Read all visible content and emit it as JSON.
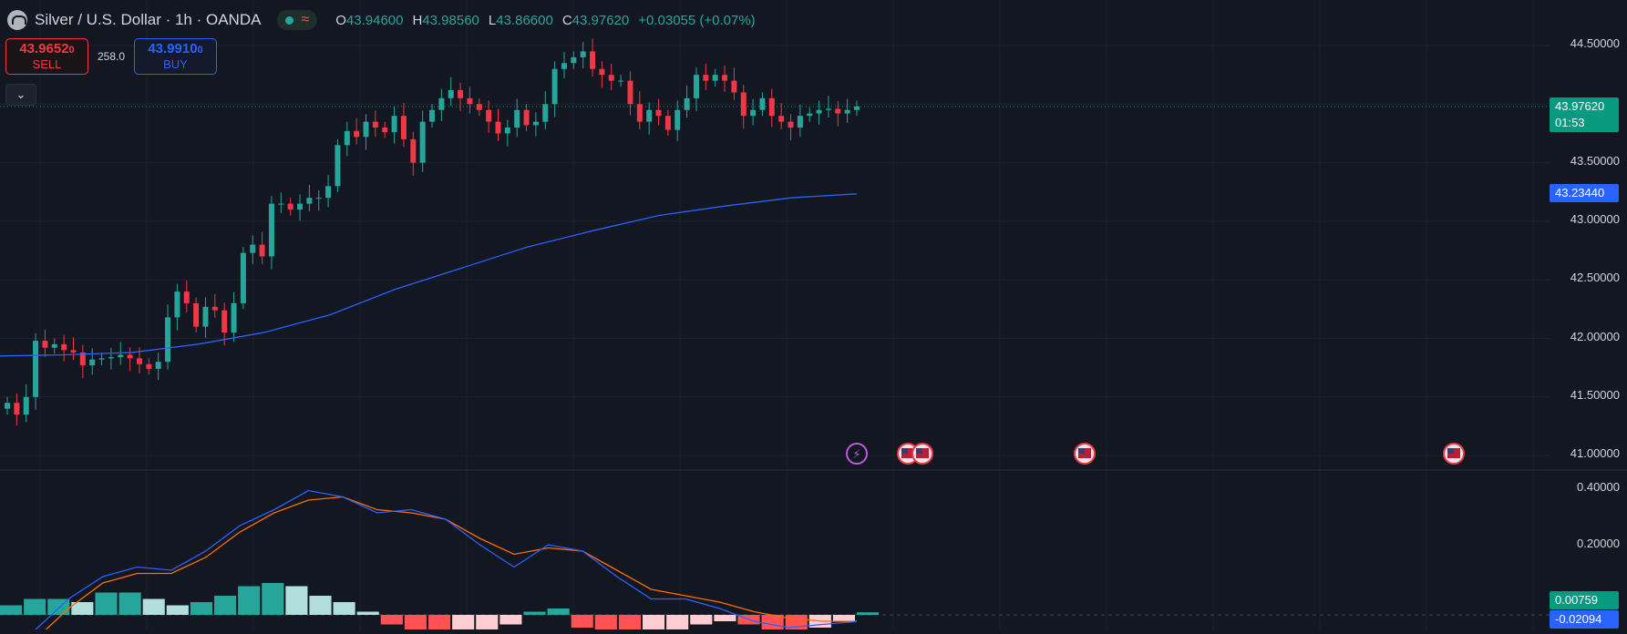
{
  "header": {
    "title": "Silver / U.S. Dollar · 1h · OANDA",
    "ohlc": [
      {
        "k": "O",
        "v": "43.94600"
      },
      {
        "k": "H",
        "v": "43.98560"
      },
      {
        "k": "L",
        "v": "43.86600"
      },
      {
        "k": "C",
        "v": "43.97620"
      }
    ],
    "change": "+0.03055 (+0.07%)"
  },
  "trade": {
    "sell_price": "43.9652",
    "sell_price_small": "0",
    "sell_label": "SELL",
    "spread": "258.0",
    "buy_price": "43.9910",
    "buy_price_small": "0",
    "buy_label": "BUY"
  },
  "price_scale": {
    "labels": [
      "44.50000",
      "43.50000",
      "43.00000",
      "42.50000",
      "42.00000",
      "41.50000",
      "41.00000"
    ],
    "last_price": "43.97620",
    "countdown": "01:53",
    "ma_value": "43.23440"
  },
  "macd_scale": {
    "labels": [
      "0.40000",
      "0.20000"
    ],
    "hist_value": "0.00759",
    "signal_value": "-0.02094"
  },
  "events": [
    "lightning-event-icon",
    "us-flag-event-icon",
    "us-flag-event-icon",
    "us-flag-event-icon",
    "us-flag-event-icon"
  ],
  "colors": {
    "background": "#131722",
    "up": "#26a69a",
    "down": "#f23645",
    "ma": "#2962ff",
    "macd": "#2962ff",
    "signal": "#ff6d00",
    "hist_up_strong": "#26a69a",
    "hist_up_weak": "#b2dfdb",
    "hist_down_strong": "#ff5252",
    "hist_down_weak": "#ffcdd2"
  },
  "chart_data": {
    "type": "candlestick",
    "y_range": [
      40.9,
      44.7
    ],
    "closes": [
      41.45,
      41.35,
      41.5,
      41.98,
      41.92,
      41.95,
      41.9,
      41.88,
      41.77,
      41.82,
      41.83,
      41.84,
      41.86,
      41.83,
      41.78,
      41.74,
      41.8,
      42.18,
      42.4,
      42.3,
      42.1,
      42.27,
      42.24,
      42.05,
      42.3,
      42.73,
      42.8,
      42.7,
      43.15,
      43.15,
      43.1,
      43.15,
      43.2,
      43.2,
      43.3,
      43.65,
      43.77,
      43.72,
      43.85,
      43.8,
      43.76,
      43.9,
      43.7,
      43.5,
      43.85,
      43.95,
      44.05,
      44.12,
      44.05,
      44.0,
      43.95,
      43.85,
      43.75,
      43.8,
      43.95,
      43.82,
      43.85,
      44.0,
      44.3,
      44.35,
      44.4,
      44.45,
      44.3,
      44.25,
      44.2,
      44.2,
      44.0,
      43.85,
      43.95,
      43.9,
      43.78,
      43.95,
      44.05,
      44.25,
      44.2,
      44.25,
      44.2,
      44.1,
      43.9,
      43.95,
      44.05,
      43.9,
      43.85,
      43.8,
      43.9,
      43.92,
      43.95,
      43.96,
      43.92,
      43.95,
      43.98
    ],
    "opens": [
      41.4,
      41.45,
      41.35,
      41.5,
      41.98,
      41.92,
      41.95,
      41.9,
      41.88,
      41.77,
      41.82,
      41.83,
      41.84,
      41.86,
      41.83,
      41.78,
      41.74,
      41.8,
      42.18,
      42.4,
      42.3,
      42.1,
      42.27,
      42.24,
      42.05,
      42.3,
      42.73,
      42.8,
      42.7,
      43.15,
      43.15,
      43.1,
      43.15,
      43.2,
      43.2,
      43.3,
      43.65,
      43.77,
      43.72,
      43.85,
      43.8,
      43.76,
      43.9,
      43.7,
      43.5,
      43.85,
      43.95,
      44.05,
      44.12,
      44.05,
      44.0,
      43.95,
      43.85,
      43.75,
      43.8,
      43.95,
      43.82,
      43.85,
      44.0,
      44.3,
      44.35,
      44.4,
      44.45,
      44.3,
      44.25,
      44.2,
      44.2,
      44.0,
      43.85,
      43.95,
      43.9,
      43.78,
      43.95,
      44.05,
      44.25,
      44.2,
      44.25,
      44.2,
      44.1,
      43.9,
      43.95,
      44.05,
      43.9,
      43.85,
      43.8,
      43.9,
      43.92,
      43.95,
      43.96,
      43.92,
      43.95
    ],
    "ma_series": [
      41.85,
      41.86,
      41.88,
      41.95,
      42.05,
      42.2,
      42.42,
      42.6,
      42.78,
      42.92,
      43.05,
      43.13,
      43.2,
      43.234
    ],
    "macd_hist": [
      0.03,
      0.05,
      0.05,
      0.04,
      0.07,
      0.07,
      0.05,
      0.03,
      0.04,
      0.06,
      0.09,
      0.1,
      0.09,
      0.06,
      0.04,
      0.01,
      -0.03,
      -0.06,
      -0.08,
      -0.07,
      -0.05,
      -0.03,
      0.01,
      0.02,
      -0.04,
      -0.08,
      -0.1,
      -0.08,
      -0.05,
      -0.03,
      -0.02,
      -0.03,
      -0.05,
      -0.06,
      -0.04,
      -0.02,
      0.008
    ],
    "macd_line": [
      -0.12,
      -0.05,
      0.05,
      0.12,
      0.15,
      0.14,
      0.2,
      0.28,
      0.33,
      0.39,
      0.37,
      0.32,
      0.33,
      0.3,
      0.22,
      0.15,
      0.22,
      0.2,
      0.12,
      0.05,
      0.05,
      0.02,
      -0.02,
      -0.04,
      -0.03,
      -0.021
    ],
    "signal_line": [
      -0.13,
      -0.08,
      0.02,
      0.1,
      0.13,
      0.13,
      0.18,
      0.26,
      0.32,
      0.36,
      0.37,
      0.33,
      0.32,
      0.3,
      0.24,
      0.19,
      0.21,
      0.2,
      0.14,
      0.08,
      0.06,
      0.04,
      0.01,
      -0.01,
      -0.02,
      -0.02
    ],
    "macd_range": [
      -0.05,
      0.45
    ]
  }
}
